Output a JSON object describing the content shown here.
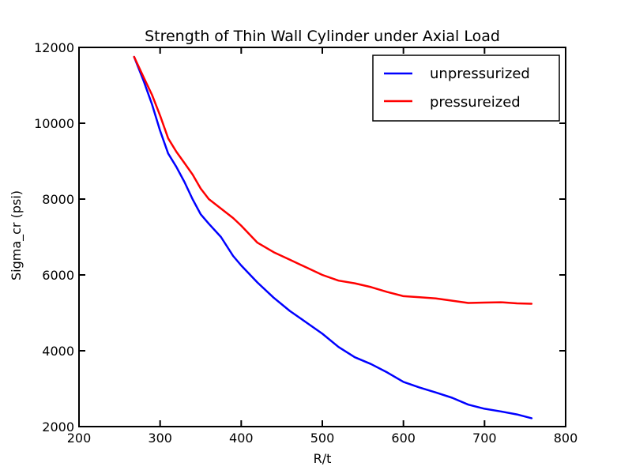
{
  "chart_data": {
    "type": "line",
    "title": "Strength of Thin Wall Cylinder under Axial Load",
    "xlabel": "R/t",
    "ylabel": "Sigma_cr (psi)",
    "xlim": [
      200,
      800
    ],
    "ylim": [
      2000,
      12000
    ],
    "xticks": [
      200,
      300,
      400,
      500,
      600,
      700,
      800
    ],
    "yticks": [
      2000,
      4000,
      6000,
      8000,
      10000,
      12000
    ],
    "grid": false,
    "legend_position": "top-right",
    "series": [
      {
        "name": "unpressurized",
        "color": "#0000ff",
        "x": [
          268,
          280,
          290,
          300,
          310,
          320,
          330,
          340,
          350,
          360,
          375,
          390,
          400,
          420,
          440,
          460,
          480,
          500,
          520,
          540,
          560,
          580,
          600,
          620,
          640,
          660,
          680,
          700,
          720,
          740,
          758
        ],
        "y": [
          11750,
          11100,
          10500,
          9800,
          9200,
          8850,
          8450,
          8000,
          7600,
          7350,
          7000,
          6500,
          6250,
          5800,
          5400,
          5050,
          4750,
          4450,
          4100,
          3830,
          3650,
          3430,
          3180,
          3030,
          2900,
          2760,
          2580,
          2470,
          2400,
          2320,
          2220
        ]
      },
      {
        "name": "pressureized",
        "color": "#ff0000",
        "x": [
          268,
          280,
          290,
          300,
          310,
          320,
          330,
          340,
          350,
          360,
          375,
          390,
          400,
          420,
          440,
          460,
          480,
          500,
          520,
          540,
          560,
          580,
          600,
          620,
          640,
          660,
          680,
          700,
          720,
          740,
          758
        ],
        "y": [
          11750,
          11200,
          10750,
          10200,
          9600,
          9250,
          8950,
          8650,
          8280,
          8000,
          7750,
          7500,
          7300,
          6850,
          6600,
          6400,
          6200,
          6000,
          5850,
          5780,
          5680,
          5550,
          5440,
          5410,
          5380,
          5320,
          5260,
          5270,
          5280,
          5250,
          5240
        ]
      }
    ]
  }
}
